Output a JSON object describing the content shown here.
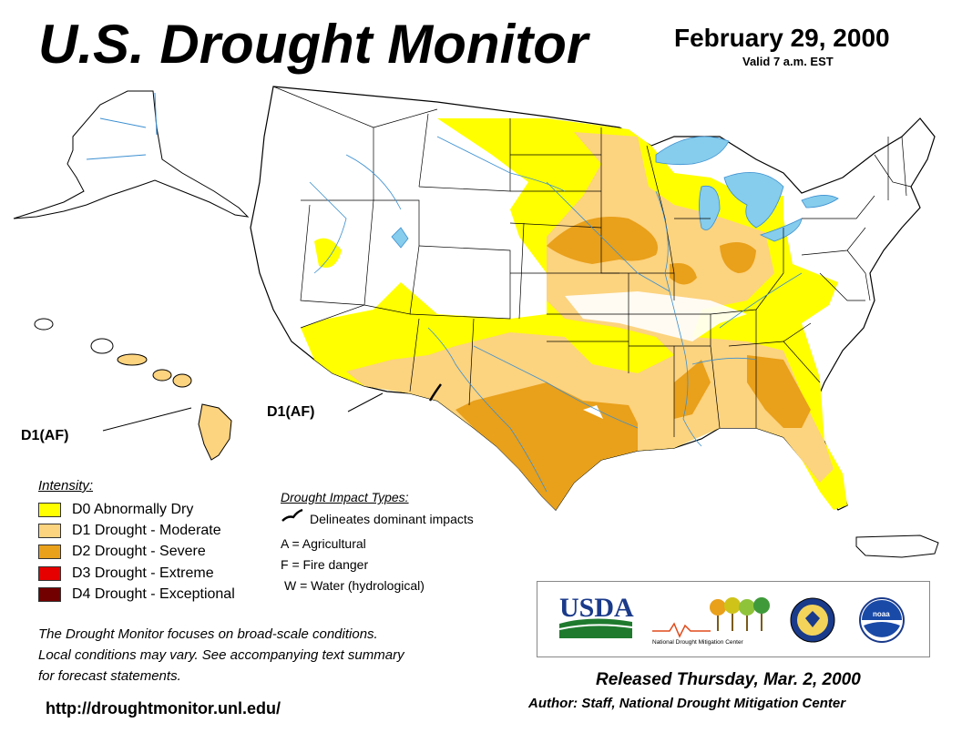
{
  "header": {
    "title": "U.S. Drought Monitor",
    "date": "February 29, 2000",
    "valid": "Valid 7 a.m. EST"
  },
  "callouts": {
    "hawaii": "D1(AF)",
    "southwest": "D1(AF)"
  },
  "legend": {
    "title": "Intensity:",
    "items": [
      {
        "code": "D0",
        "label": "D0 Abnormally Dry",
        "color": "#ffff00"
      },
      {
        "code": "D1",
        "label": "D1 Drought - Moderate",
        "color": "#fcd37f"
      },
      {
        "code": "D2",
        "label": "D2 Drought - Severe",
        "color": "#e9a01a"
      },
      {
        "code": "D3",
        "label": "D3 Drought - Extreme",
        "color": "#e60000"
      },
      {
        "code": "D4",
        "label": "D4 Drought - Exceptional",
        "color": "#730000"
      }
    ]
  },
  "impacts": {
    "title": "Drought Impact Types:",
    "line_label": "Delineates dominant impacts",
    "types": [
      "A = Agricultural",
      "F = Fire danger",
      "W = Water (hydrological)"
    ]
  },
  "notice": {
    "line1": "The Drought Monitor focuses on broad-scale conditions.",
    "line2": "Local conditions may vary. See accompanying text summary",
    "line3": "for forecast statements."
  },
  "url": "http://droughtmonitor.unl.edu/",
  "footer": {
    "released": "Released Thursday, Mar. 2, 2000",
    "author": "Author: Staff, National Drought Mitigation Center"
  },
  "logos": {
    "usda": "USDA",
    "ndmc": "National Drought Mitigation Center",
    "noaa": "noaa"
  },
  "colors": {
    "water": "#86ccec",
    "d0": "#ffff00",
    "d1": "#fcd37f",
    "d2": "#e9a01a",
    "usda_blue": "#1a3a8a",
    "usda_green": "#1f7a2e"
  }
}
